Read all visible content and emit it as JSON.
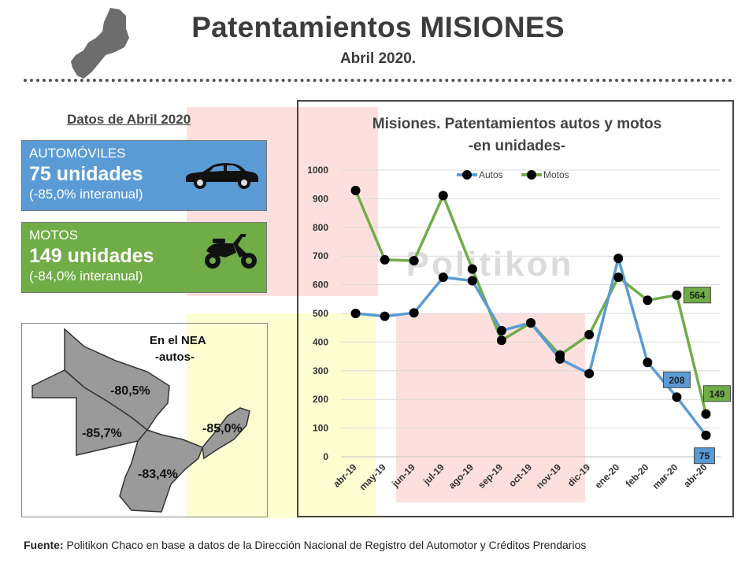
{
  "header": {
    "title": "Patentamientos MISIONES",
    "subtitle": "Abril 2020."
  },
  "left_panel": {
    "heading": "Datos de Abril 2020",
    "autos_card": {
      "title": "AUTOMÓVILES",
      "value": "75 unidades",
      "change": "(-85,0% interanual)",
      "color": "#5b9bd5",
      "icon": "car-icon"
    },
    "motos_card": {
      "title": "MOTOS",
      "value": "149 unidades",
      "change": "(-84,0% interanual)",
      "color": "#70ad47",
      "icon": "motorcycle-icon"
    }
  },
  "nea_map": {
    "title": "En el NEA",
    "subtitle": "-autos-",
    "labels": {
      "formosa": "-80,5%",
      "chaco": "-85,7%",
      "misiones": "-85,0%",
      "corrientes": "-83,4%"
    }
  },
  "watermark": "Politikon",
  "chart_data": {
    "type": "line",
    "title": "Misiones. Patentamientos autos y motos",
    "subtitle": "-en unidades-",
    "categories": [
      "abr-19",
      "may-19",
      "jun-19",
      "jul-19",
      "ago-19",
      "sep-19",
      "oct-19",
      "nov-19",
      "dic-19",
      "ene-20",
      "feb-20",
      "mar-20",
      "abr-20"
    ],
    "series": [
      {
        "name": "Autos",
        "color": "#5b9bd5",
        "values": [
          500,
          490,
          502,
          626,
          614,
          440,
          467,
          341,
          290,
          692,
          329,
          208,
          75
        ]
      },
      {
        "name": "Motos",
        "color": "#70ad47",
        "values": [
          929,
          687,
          684,
          911,
          655,
          406,
          467,
          355,
          426,
          626,
          546,
          564,
          149
        ]
      }
    ],
    "data_labels": [
      {
        "series": "Autos",
        "category": "mar-20",
        "text": "208"
      },
      {
        "series": "Autos",
        "category": "abr-20",
        "text": "75"
      },
      {
        "series": "Motos",
        "category": "mar-20",
        "text": "564"
      },
      {
        "series": "Motos",
        "category": "abr-20",
        "text": "149"
      }
    ],
    "y_ticks": [
      "0",
      "100",
      "200",
      "300",
      "400",
      "500",
      "600",
      "700",
      "800",
      "900",
      "1000"
    ],
    "ylim": [
      0,
      1000
    ],
    "grid": true,
    "legend": "top"
  },
  "footer": {
    "label": "Fuente:",
    "text": " Politikon Chaco en base a datos de la Dirección Nacional de Registro del Automotor y Créditos Prendarios"
  }
}
